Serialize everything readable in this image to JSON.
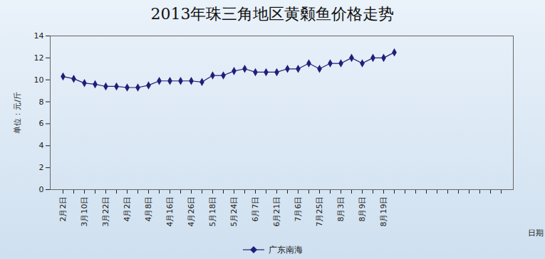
{
  "chart_data": {
    "type": "line",
    "title": "2013年珠三角地区黄颡鱼价格走势",
    "x_label": "日期",
    "y_label": "单位：元/斤",
    "categories": [
      "2月2日",
      null,
      "3月10日",
      null,
      "3月22日",
      null,
      "4月2日",
      null,
      "4月8日",
      null,
      "4月16日",
      null,
      "4月26日",
      null,
      "5月18日",
      null,
      "5月24日",
      null,
      "6月7日",
      null,
      "6月21日",
      null,
      "7月6日",
      null,
      "7月25日",
      null,
      "8月3日",
      null,
      "8月9日",
      null,
      "8月19日",
      null,
      null,
      null,
      null,
      null,
      null,
      null,
      null,
      null,
      null,
      null
    ],
    "series": [
      {
        "name": "广东南海",
        "color": "#1f1f7a",
        "marker": "diamond",
        "values": [
          10.3,
          10.1,
          9.7,
          9.6,
          9.4,
          9.4,
          9.3,
          9.3,
          9.5,
          9.9,
          9.9,
          9.9,
          9.9,
          9.8,
          10.4,
          10.4,
          10.8,
          11.0,
          10.7,
          10.7,
          10.7,
          11.0,
          11.0,
          11.5,
          11.0,
          11.5,
          11.5,
          12.0,
          11.5,
          12.0,
          12.0,
          12.5,
          null,
          null,
          null,
          null,
          null,
          null,
          null,
          null,
          null,
          null
        ]
      }
    ],
    "ylim": [
      0,
      14
    ],
    "yticks": [
      0,
      2,
      4,
      6,
      8,
      10,
      12,
      14
    ],
    "grid": false,
    "legend": "bottom"
  }
}
